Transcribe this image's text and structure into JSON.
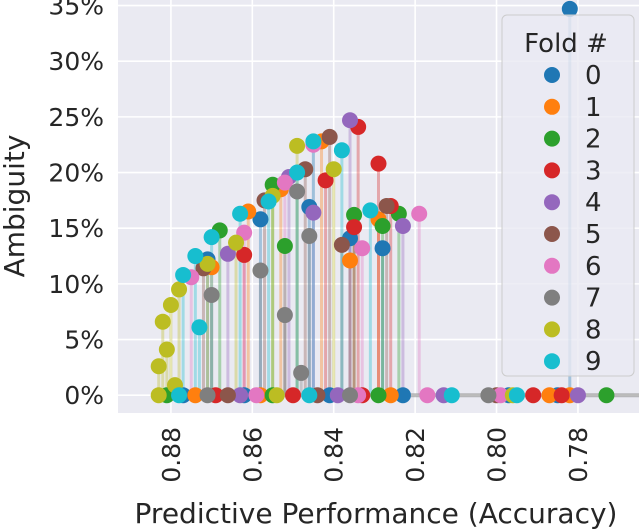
{
  "chart_data": {
    "type": "scatter",
    "xlabel": "Predictive Performance (Accuracy)",
    "ylabel": "Ambiguity",
    "x_axis_reversed": true,
    "xlim": [
      0.893,
      0.765
    ],
    "ylim": [
      -1.6,
      35.5
    ],
    "xticks": [
      0.88,
      0.86,
      0.84,
      0.82,
      0.8,
      0.78
    ],
    "xtick_labels": [
      "0.88",
      "0.86",
      "0.84",
      "0.82",
      "0.80",
      "0.78"
    ],
    "yticks": [
      0,
      5,
      10,
      15,
      20,
      25,
      30,
      35
    ],
    "ytick_labels": [
      "0%",
      "5%",
      "10%",
      "15%",
      "20%",
      "25%",
      "30%",
      "35%"
    ],
    "grid": true,
    "legend": {
      "title": "Fold #",
      "placement": "top-right",
      "entries": [
        "0",
        "1",
        "2",
        "3",
        "4",
        "5",
        "6",
        "7",
        "8",
        "9"
      ]
    },
    "colors": [
      "#1f77b4",
      "#ff7f0e",
      "#2ca02c",
      "#d62728",
      "#9467bd",
      "#8c564b",
      "#e377c2",
      "#7f7f7f",
      "#bcbd22",
      "#17becf"
    ],
    "series": [
      {
        "name": "0",
        "points": [
          [
            0.782,
            34.7
          ],
          [
            0.797,
            0.0
          ],
          [
            0.785,
            0.0
          ],
          [
            0.871,
            12.2
          ],
          [
            0.858,
            15.8
          ],
          [
            0.846,
            16.9
          ],
          [
            0.836,
            14.1
          ],
          [
            0.828,
            13.2
          ],
          [
            0.877,
            0.0
          ],
          [
            0.862,
            0.0
          ],
          [
            0.841,
            0.0
          ],
          [
            0.823,
            0.0
          ]
        ]
      },
      {
        "name": "1",
        "points": [
          [
            0.843,
            22.8
          ],
          [
            0.853,
            18.5
          ],
          [
            0.861,
            16.5
          ],
          [
            0.829,
            15.8
          ],
          [
            0.87,
            11.5
          ],
          [
            0.836,
            12.1
          ],
          [
            0.874,
            0.0
          ],
          [
            0.858,
            0.0
          ],
          [
            0.826,
            0.0
          ],
          [
            0.782,
            0.0
          ],
          [
            0.787,
            0.0
          ]
        ]
      },
      {
        "name": "2",
        "points": [
          [
            0.855,
            18.9
          ],
          [
            0.835,
            16.2
          ],
          [
            0.828,
            15.2
          ],
          [
            0.824,
            16.3
          ],
          [
            0.868,
            14.8
          ],
          [
            0.852,
            13.4
          ],
          [
            0.881,
            0.0
          ],
          [
            0.855,
            0.0
          ],
          [
            0.829,
            0.0
          ],
          [
            0.773,
            0.0
          ]
        ]
      },
      {
        "name": "3",
        "points": [
          [
            0.834,
            24.1
          ],
          [
            0.829,
            20.8
          ],
          [
            0.842,
            19.3
          ],
          [
            0.826,
            17.0
          ],
          [
            0.835,
            15.1
          ],
          [
            0.862,
            12.6
          ],
          [
            0.869,
            0.0
          ],
          [
            0.85,
            0.0
          ],
          [
            0.833,
            0.0
          ],
          [
            0.791,
            0.0
          ],
          [
            0.784,
            0.0
          ]
        ]
      },
      {
        "name": "4",
        "points": [
          [
            0.836,
            24.7
          ],
          [
            0.851,
            19.6
          ],
          [
            0.823,
            15.2
          ],
          [
            0.845,
            16.4
          ],
          [
            0.866,
            12.7
          ],
          [
            0.863,
            0.0
          ],
          [
            0.839,
            0.0
          ],
          [
            0.813,
            0.0
          ],
          [
            0.78,
            0.0
          ]
        ]
      },
      {
        "name": "5",
        "points": [
          [
            0.841,
            23.2
          ],
          [
            0.847,
            20.3
          ],
          [
            0.827,
            17.0
          ],
          [
            0.857,
            17.5
          ],
          [
            0.838,
            13.5
          ],
          [
            0.872,
            11.4
          ],
          [
            0.866,
            0.0
          ],
          [
            0.844,
            0.0
          ],
          [
            0.8,
            0.0
          ]
        ]
      },
      {
        "name": "6",
        "points": [
          [
            0.845,
            22.5
          ],
          [
            0.852,
            19.1
          ],
          [
            0.819,
            16.3
          ],
          [
            0.862,
            14.6
          ],
          [
            0.833,
            13.2
          ],
          [
            0.875,
            10.6
          ],
          [
            0.859,
            0.0
          ],
          [
            0.834,
            0.0
          ],
          [
            0.817,
            0.0
          ],
          [
            0.799,
            0.0
          ]
        ]
      },
      {
        "name": "7",
        "points": [
          [
            0.849,
            18.3
          ],
          [
            0.846,
            14.3
          ],
          [
            0.858,
            11.2
          ],
          [
            0.87,
            9.0
          ],
          [
            0.852,
            7.2
          ],
          [
            0.848,
            2.0
          ],
          [
            0.871,
            0.0
          ],
          [
            0.836,
            0.0
          ],
          [
            0.802,
            0.0
          ]
        ]
      },
      {
        "name": "8",
        "points": [
          [
            0.849,
            22.4
          ],
          [
            0.84,
            20.3
          ],
          [
            0.855,
            17.9
          ],
          [
            0.864,
            13.7
          ],
          [
            0.871,
            11.8
          ],
          [
            0.878,
            9.5
          ],
          [
            0.88,
            8.1
          ],
          [
            0.882,
            6.6
          ],
          [
            0.881,
            4.1
          ],
          [
            0.883,
            2.6
          ],
          [
            0.879,
            0.9
          ],
          [
            0.883,
            0.0
          ],
          [
            0.854,
            0.0
          ],
          [
            0.796,
            0.0
          ]
        ]
      },
      {
        "name": "9",
        "points": [
          [
            0.845,
            22.8
          ],
          [
            0.838,
            22.0
          ],
          [
            0.849,
            20.0
          ],
          [
            0.856,
            17.4
          ],
          [
            0.863,
            16.3
          ],
          [
            0.831,
            16.6
          ],
          [
            0.87,
            14.2
          ],
          [
            0.874,
            12.5
          ],
          [
            0.877,
            10.8
          ],
          [
            0.873,
            6.1
          ],
          [
            0.878,
            0.0
          ],
          [
            0.846,
            0.0
          ],
          [
            0.811,
            0.0
          ],
          [
            0.795,
            0.0
          ]
        ]
      }
    ]
  }
}
